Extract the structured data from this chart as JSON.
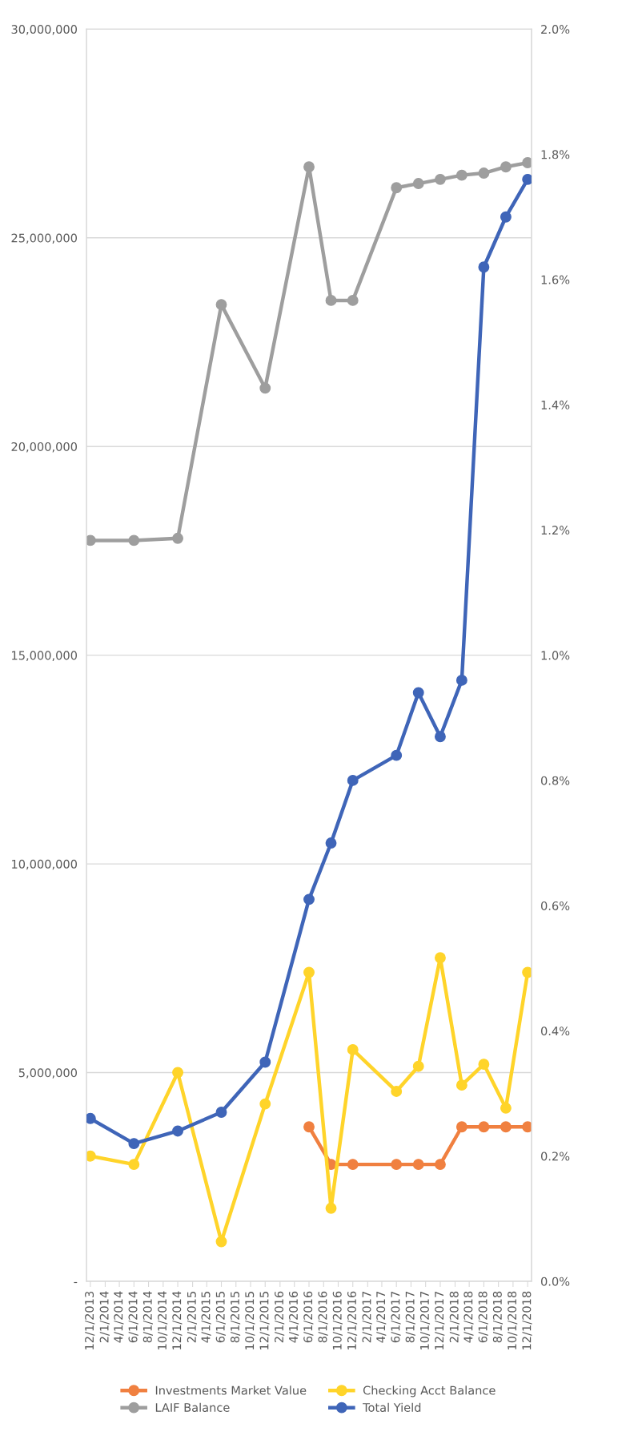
{
  "chart_data": {
    "type": "line",
    "x": [
      "2013-12-01",
      "2014-06-01",
      "2014-12-01",
      "2015-06-01",
      "2015-12-01",
      "2016-06-01",
      "2016-09-01",
      "2016-12-01",
      "2017-06-01",
      "2017-09-01",
      "2017-12-01",
      "2018-03-01",
      "2018-06-01",
      "2018-09-01",
      "2018-12-01"
    ],
    "series": [
      {
        "name": "Investments Market Value",
        "color": "#f08040",
        "values": [
          null,
          null,
          null,
          null,
          null,
          3700000.0,
          2800000.0,
          2800000.0,
          2800000.0,
          2800000.0,
          2800000.0,
          3700000.0,
          3700000.0,
          3700000.0,
          3700000.0
        ]
      },
      {
        "name": "LAIF Balance",
        "color": "#9e9e9e",
        "values": [
          17750000.0,
          17750000.0,
          17800000.0,
          23400000.0,
          21400000.0,
          26700000.0,
          23500000.0,
          23500000.0,
          26200000.0,
          26300000.0,
          26400000.0,
          26500000.0,
          26550000.0,
          26700000.0,
          26800000.0
        ]
      },
      {
        "name": "Checking Acct Balance",
        "color": "#ffd42a",
        "values": [
          3000000.0,
          2800000.0,
          5000000.0,
          950000.0,
          4250000.0,
          7400000.0,
          1750000.0,
          5550000.0,
          4550000.0,
          5150000.0,
          7750000.0,
          4700000.0,
          5200000.0,
          4150000.0,
          7400000.0
        ]
      },
      {
        "name": "Total Yield",
        "color": "#3f65b8",
        "axis": "y2",
        "values": [
          0.26,
          0.22,
          0.24,
          0.27,
          0.35,
          0.61,
          0.7,
          0.8,
          0.84,
          0.94,
          0.87,
          0.96,
          1.62,
          1.7,
          1.76
        ]
      }
    ],
    "xlim": [
      "2013-11-15",
      "2018-12-17"
    ],
    "xticks": [
      {
        "value": "2013-12-01",
        "label": "12/1/2013"
      },
      {
        "value": "2014-02-01",
        "label": "2/1/2014"
      },
      {
        "value": "2014-04-01",
        "label": "4/1/2014"
      },
      {
        "value": "2014-06-01",
        "label": "6/1/2014"
      },
      {
        "value": "2014-08-01",
        "label": "8/1/2014"
      },
      {
        "value": "2014-10-01",
        "label": "10/1/2014"
      },
      {
        "value": "2014-12-01",
        "label": "12/1/2014"
      },
      {
        "value": "2015-02-01",
        "label": "2/1/2015"
      },
      {
        "value": "2015-04-01",
        "label": "4/1/2015"
      },
      {
        "value": "2015-06-01",
        "label": "6/1/2015"
      },
      {
        "value": "2015-08-01",
        "label": "8/1/2015"
      },
      {
        "value": "2015-10-01",
        "label": "10/1/2015"
      },
      {
        "value": "2015-12-01",
        "label": "12/1/2015"
      },
      {
        "value": "2016-02-01",
        "label": "2/1/2016"
      },
      {
        "value": "2016-04-01",
        "label": "4/1/2016"
      },
      {
        "value": "2016-06-01",
        "label": "6/1/2016"
      },
      {
        "value": "2016-08-01",
        "label": "8/1/2016"
      },
      {
        "value": "2016-10-01",
        "label": "10/1/2016"
      },
      {
        "value": "2016-12-01",
        "label": "12/1/2016"
      },
      {
        "value": "2017-02-01",
        "label": "2/1/2017"
      },
      {
        "value": "2017-04-01",
        "label": "4/1/2017"
      },
      {
        "value": "2017-06-01",
        "label": "6/1/2017"
      },
      {
        "value": "2017-08-01",
        "label": "8/1/2017"
      },
      {
        "value": "2017-10-01",
        "label": "10/1/2017"
      },
      {
        "value": "2017-12-01",
        "label": "12/1/2017"
      },
      {
        "value": "2018-02-01",
        "label": "2/1/2018"
      },
      {
        "value": "2018-04-01",
        "label": "4/1/2018"
      },
      {
        "value": "2018-06-01",
        "label": "6/1/2018"
      },
      {
        "value": "2018-08-01",
        "label": "8/1/2018"
      },
      {
        "value": "2018-10-01",
        "label": "10/1/2018"
      },
      {
        "value": "2018-12-01",
        "label": "12/1/2018"
      }
    ],
    "ylim": [
      0,
      30000000
    ],
    "yticks": [
      {
        "value": 0,
        "label": "-"
      },
      {
        "value": 5000000,
        "label": "5,000,000"
      },
      {
        "value": 10000000,
        "label": "10,000,000"
      },
      {
        "value": 15000000,
        "label": "15,000,000"
      },
      {
        "value": 20000000,
        "label": "20,000,000"
      },
      {
        "value": 25000000,
        "label": "25,000,000"
      },
      {
        "value": 30000000,
        "label": "30,000,000"
      }
    ],
    "y2lim": [
      0,
      2.0
    ],
    "y2ticks": [
      {
        "value": 0,
        "label": "0.0%"
      },
      {
        "value": 0.2,
        "label": "0.2%"
      },
      {
        "value": 0.4,
        "label": "0.4%"
      },
      {
        "value": 0.6,
        "label": "0.6%"
      },
      {
        "value": 0.8,
        "label": "0.8%"
      },
      {
        "value": 1.0,
        "label": "1.0%"
      },
      {
        "value": 1.2,
        "label": "1.2%"
      },
      {
        "value": 1.4,
        "label": "1.4%"
      },
      {
        "value": 1.6,
        "label": "1.6%"
      },
      {
        "value": 1.8,
        "label": "1.8%"
      },
      {
        "value": 2.0,
        "label": "2.0%"
      }
    ],
    "grid": "y",
    "legend": "bottom",
    "marker": "circle",
    "line_style": "solid"
  }
}
